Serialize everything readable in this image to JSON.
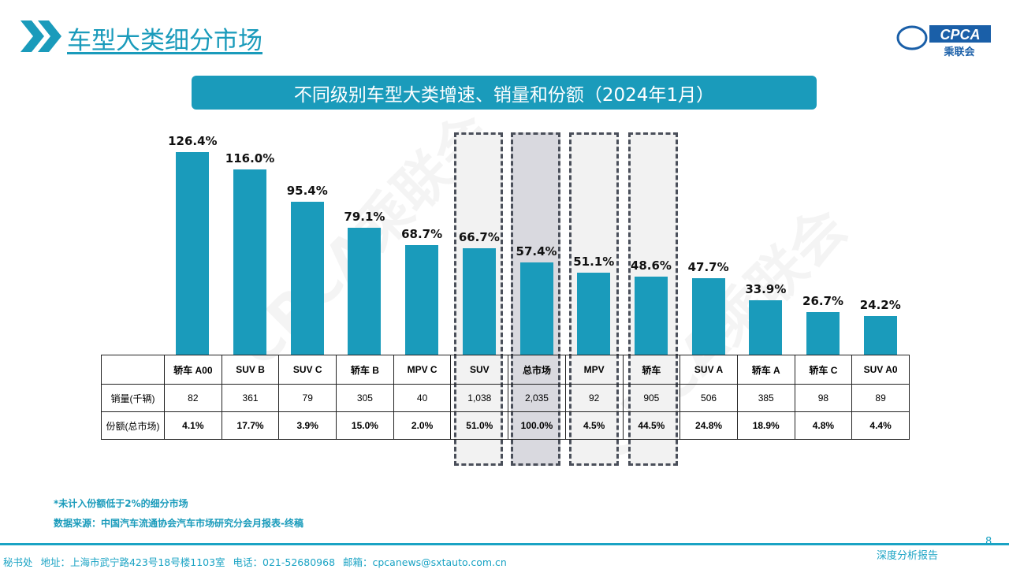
{
  "header": {
    "title": "车型大类细分市场",
    "logo_text": "CPCA",
    "logo_sub": "乘联会",
    "logo_small": "CPCA"
  },
  "chart_data": {
    "type": "bar",
    "title": "不同级别车型大类增速、销量和份额（2024年1月）",
    "categories": [
      "轿车 A00",
      "SUV B",
      "SUV C",
      "轿车 B",
      "MPV C",
      "SUV",
      "总市场",
      "MPV",
      "轿车",
      "SUV A",
      "轿车 A",
      "轿车 C",
      "SUV A0"
    ],
    "values": [
      126.4,
      116.0,
      95.4,
      79.1,
      68.7,
      66.7,
      57.4,
      51.1,
      48.6,
      47.7,
      33.9,
      26.7,
      24.2
    ],
    "value_labels": [
      "126.4%",
      "116.0%",
      "95.4%",
      "79.1%",
      "68.7%",
      "66.7%",
      "57.4%",
      "51.1%",
      "48.6%",
      "47.7%",
      "33.9%",
      "26.7%",
      "24.2%"
    ],
    "unit": "%",
    "highlighted": [
      "SUV",
      "总市场",
      "MPV",
      "轿车"
    ],
    "bar_color": "#1a9bbb",
    "table": {
      "row_labels": [
        "销量(千辆)",
        "份额(总市场)"
      ],
      "sales": [
        "82",
        "361",
        "79",
        "305",
        "40",
        "1,038",
        "2,035",
        "92",
        "905",
        "506",
        "385",
        "98",
        "89"
      ],
      "share": [
        "4.1%",
        "17.7%",
        "3.9%",
        "15.0%",
        "2.0%",
        "51.0%",
        "100.0%",
        "4.5%",
        "44.5%",
        "24.8%",
        "18.9%",
        "4.8%",
        "4.4%"
      ]
    }
  },
  "watermark": "CPCA乘联会",
  "notes": [
    "*未计入份额低于2%的细分市场",
    "数据来源：中国汽车流通协会汽车市场研究分会月报表-终稿"
  ],
  "footer": {
    "text": "秘书处   地址：上海市武宁路423号18号楼1103室   电话：021-52680968    邮箱：cpcanews@sxtauto.com.cn",
    "report": "深度分析报告",
    "page": "8"
  }
}
